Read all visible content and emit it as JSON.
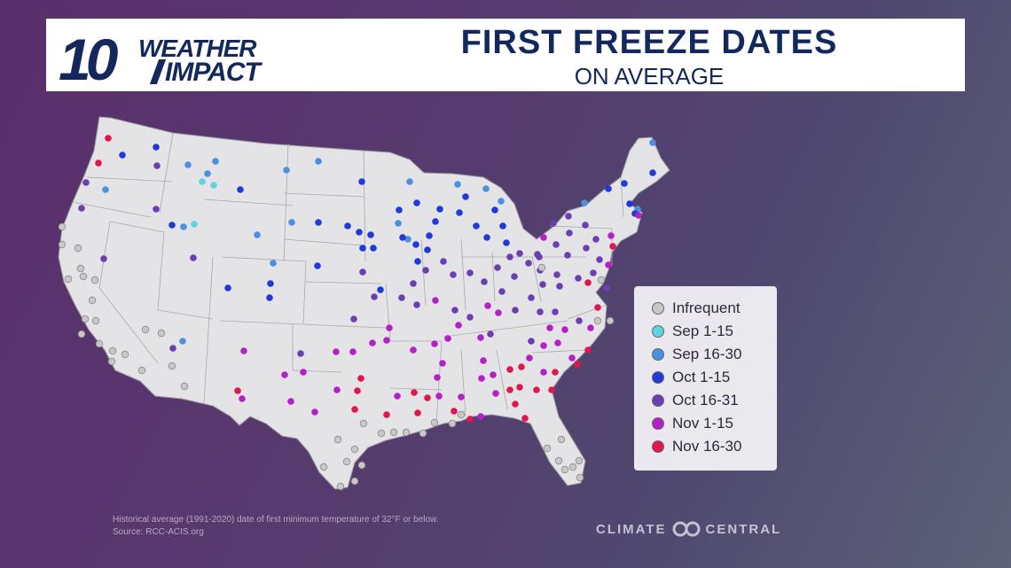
{
  "logo": {
    "number": "10",
    "word1": "WEATHER",
    "word2": "IMPACT"
  },
  "title": "FIRST FREEZE DATES",
  "subtitle": "ON AVERAGE",
  "legend": [
    {
      "label": "Infrequent",
      "color": "#c8c8c8"
    },
    {
      "label": "Sep 1-15",
      "color": "#5fd3e6"
    },
    {
      "label": "Sep 16-30",
      "color": "#4a90e2"
    },
    {
      "label": "Oct 1-15",
      "color": "#1f3ad8"
    },
    {
      "label": "Oct 16-31",
      "color": "#6a3fb4"
    },
    {
      "label": "Nov 1-15",
      "color": "#b41fc8"
    },
    {
      "label": "Nov 16-30",
      "color": "#e0164f"
    }
  ],
  "footnote": {
    "line1": "Historical average (1991-2020) date of first minimum temperature of 32°F or below.",
    "line2": "Source: RCC-ACIS.org"
  },
  "credit": {
    "left": "CLIMATE",
    "right": "CENTRAL"
  }
}
